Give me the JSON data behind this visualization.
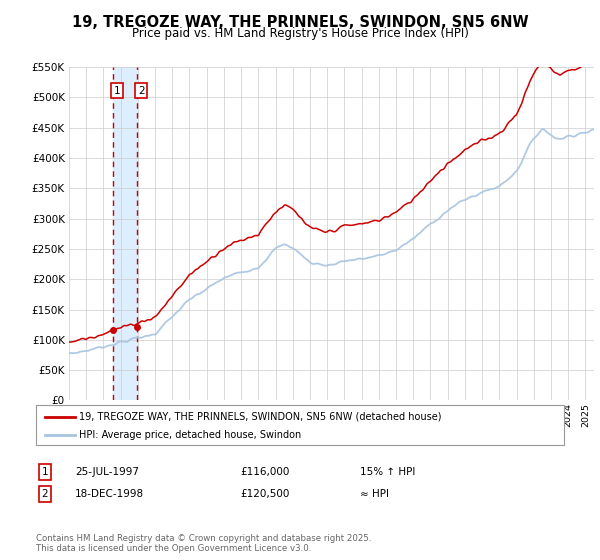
{
  "title": "19, TREGOZE WAY, THE PRINNELS, SWINDON, SN5 6NW",
  "subtitle": "Price paid vs. HM Land Registry's House Price Index (HPI)",
  "legend_line1": "19, TREGOZE WAY, THE PRINNELS, SWINDON, SN5 6NW (detached house)",
  "legend_line2": "HPI: Average price, detached house, Swindon",
  "sale1_date": "25-JUL-1997",
  "sale1_price": "£116,000",
  "sale1_hpi": "15% ↑ HPI",
  "sale2_date": "18-DEC-1998",
  "sale2_price": "£120,500",
  "sale2_hpi": "≈ HPI",
  "footer": "Contains HM Land Registry data © Crown copyright and database right 2025.\nThis data is licensed under the Open Government Licence v3.0.",
  "sale1_year": 1997.57,
  "sale2_year": 1998.96,
  "sale1_value": 116000,
  "sale2_value": 120500,
  "hpi_color": "#a8c4e0",
  "price_color": "#cc0000",
  "vline_color": "#cc0000",
  "highlight_color": "#ddeeff",
  "ylim_max": 550000,
  "ylim_min": 0,
  "background_color": "#ffffff",
  "grid_color": "#cccccc",
  "xlim_min": 1995,
  "xlim_max": 2025.5
}
